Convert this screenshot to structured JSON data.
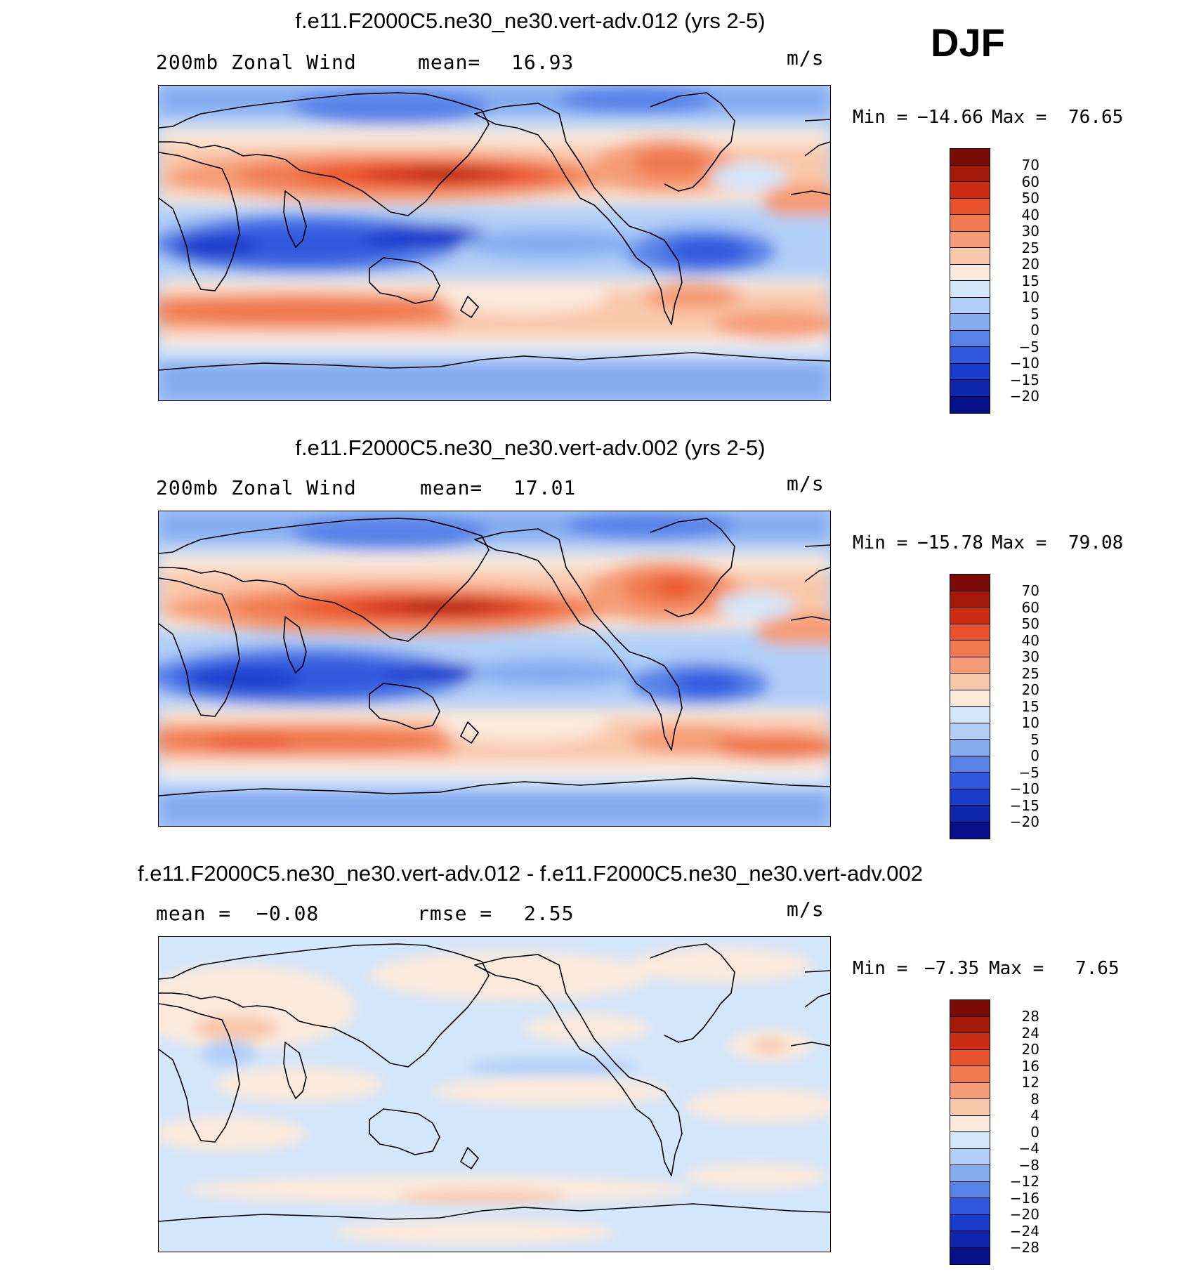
{
  "season": "DJF",
  "colors": {
    "warm": [
      "#fbe9dc",
      "#f9c8ac",
      "#f59c76",
      "#f0794e",
      "#e9522a",
      "#cc2c12",
      "#a31809",
      "#7c0a05"
    ],
    "cool": [
      "#d4e6fa",
      "#b1cff7",
      "#85acf1",
      "#5882e8",
      "#3058de",
      "#1a3ccc",
      "#0e24ac",
      "#061089"
    ],
    "coast": "#000000"
  },
  "panels": [
    {
      "title": "f.e11.F2000C5.ne30_ne30.vert-adv.012 (yrs 2-5)",
      "variable": "200mb Zonal Wind",
      "stat_label": "mean=",
      "stat_value": "16.93",
      "units": "m/s",
      "min_label": "Min =",
      "min_value": "−14.66",
      "max_label": "Max =",
      "max_value": "76.65",
      "levels": [
        "70",
        "60",
        "50",
        "40",
        "30",
        "25",
        "20",
        "15",
        "10",
        "5",
        "0",
        "−5",
        "−10",
        "−15",
        "−20"
      ]
    },
    {
      "title": "f.e11.F2000C5.ne30_ne30.vert-adv.002 (yrs 2-5)",
      "variable": "200mb Zonal Wind",
      "stat_label": "mean=",
      "stat_value": "17.01",
      "units": "m/s",
      "min_label": "Min =",
      "min_value": "−15.78",
      "max_label": "Max =",
      "max_value": "79.08",
      "levels": [
        "70",
        "60",
        "50",
        "40",
        "30",
        "25",
        "20",
        "15",
        "10",
        "5",
        "0",
        "−5",
        "−10",
        "−15",
        "−20"
      ]
    },
    {
      "title": "f.e11.F2000C5.ne30_ne30.vert-adv.012 - f.e11.F2000C5.ne30_ne30.vert-adv.002",
      "variable": "mean =",
      "variable_value": "−0.08",
      "stat_label": "rmse =",
      "stat_value": "2.55",
      "units": "m/s",
      "min_label": "Min =",
      "min_value": "−7.35",
      "max_label": "Max =",
      "max_value": "7.65",
      "levels": [
        "28",
        "24",
        "20",
        "16",
        "12",
        "8",
        "4",
        "0",
        "−4",
        "−8",
        "−12",
        "−16",
        "−20",
        "−24",
        "−28"
      ]
    }
  ]
}
